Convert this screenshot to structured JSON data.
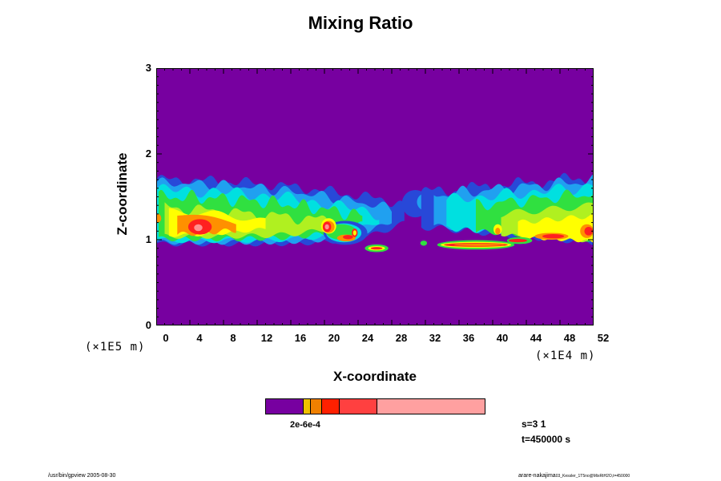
{
  "chart_data": {
    "type": "heatmap",
    "title": "Mixing Ratio",
    "xlabel": "X-coordinate",
    "ylabel": "Z-coordinate",
    "x_factor_label": "(×1E4 m)",
    "y_factor_label": "(×1E5 m)",
    "x_ticks": [
      "0",
      "4",
      "8",
      "12",
      "16",
      "20",
      "24",
      "28",
      "32",
      "36",
      "40",
      "44",
      "48",
      "52"
    ],
    "y_ticks": [
      "3",
      "2",
      "1",
      "0"
    ],
    "xlim": [
      0,
      52
    ],
    "ylim": [
      0,
      3
    ],
    "colorbar_label": "2e-6e-4",
    "colorbar_colors": [
      "#7700a0",
      "#f0c000",
      "#f08000",
      "#ff2000",
      "#ff4040",
      "#ffa0a0"
    ],
    "colorbar_weights": [
      17,
      3,
      5,
      8,
      17,
      50
    ],
    "field_colors": {
      "background": "#7700a0",
      "dark_blue": "#2848d8",
      "light_blue": "#20a0f0",
      "cyan": "#00e0e0",
      "green": "#30e040",
      "yellow_green": "#b0f020",
      "yellow": "#ffff00",
      "orange": "#ff9000",
      "red": "#ff2020",
      "pink": "#ff9090"
    }
  },
  "info": {
    "step": "s=3 1",
    "time": "t=450000 s"
  },
  "footer": {
    "left": "/usr/bin/gpview 2005-08-30",
    "right": "arare-nakajima",
    "right_small": "03_Kessler_1T5no@MixRtH2O,t=450000"
  }
}
